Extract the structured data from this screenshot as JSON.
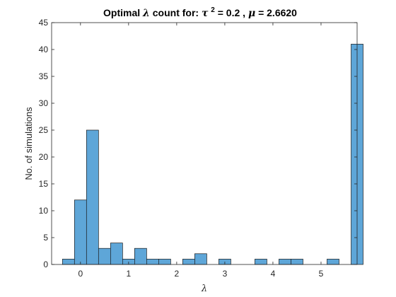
{
  "chart_data": {
    "type": "bar",
    "title": {
      "prefix": "Optimal ",
      "lambda": "λ",
      "mid": " count for: ",
      "tau": "τ",
      "tau_exp": "2",
      "tau_value": " = 0.2 , ",
      "mu": "μ",
      "mu_value": " = 2.6620"
    },
    "xlabel": "λ",
    "ylabel": "No. of simulations",
    "xlim": [
      -0.6,
      5.75
    ],
    "ylim": [
      0,
      45
    ],
    "xticks": [
      0,
      1,
      2,
      3,
      4,
      5
    ],
    "yticks": [
      0,
      5,
      10,
      15,
      20,
      25,
      30,
      35,
      40,
      45
    ],
    "bin_width": 0.25,
    "bins": [
      {
        "start": -0.375,
        "value": 1
      },
      {
        "start": -0.125,
        "value": 12
      },
      {
        "start": 0.125,
        "value": 25
      },
      {
        "start": 0.375,
        "value": 3
      },
      {
        "start": 0.625,
        "value": 4
      },
      {
        "start": 0.875,
        "value": 1
      },
      {
        "start": 1.125,
        "value": 3
      },
      {
        "start": 1.375,
        "value": 1
      },
      {
        "start": 1.625,
        "value": 1
      },
      {
        "start": 1.875,
        "value": 0
      },
      {
        "start": 2.125,
        "value": 1
      },
      {
        "start": 2.375,
        "value": 2
      },
      {
        "start": 2.625,
        "value": 0
      },
      {
        "start": 2.875,
        "value": 1
      },
      {
        "start": 3.125,
        "value": 0
      },
      {
        "start": 3.375,
        "value": 0
      },
      {
        "start": 3.625,
        "value": 1
      },
      {
        "start": 3.875,
        "value": 0
      },
      {
        "start": 4.125,
        "value": 1
      },
      {
        "start": 4.375,
        "value": 1
      },
      {
        "start": 4.625,
        "value": 0
      },
      {
        "start": 4.875,
        "value": 0
      },
      {
        "start": 5.125,
        "value": 1
      },
      {
        "start": 5.375,
        "value": 0
      },
      {
        "start": 5.625,
        "value": 41
      }
    ],
    "bar_color": "#5ea6d8",
    "edge_color": "#1a1a1a",
    "grid": false,
    "box": true
  }
}
